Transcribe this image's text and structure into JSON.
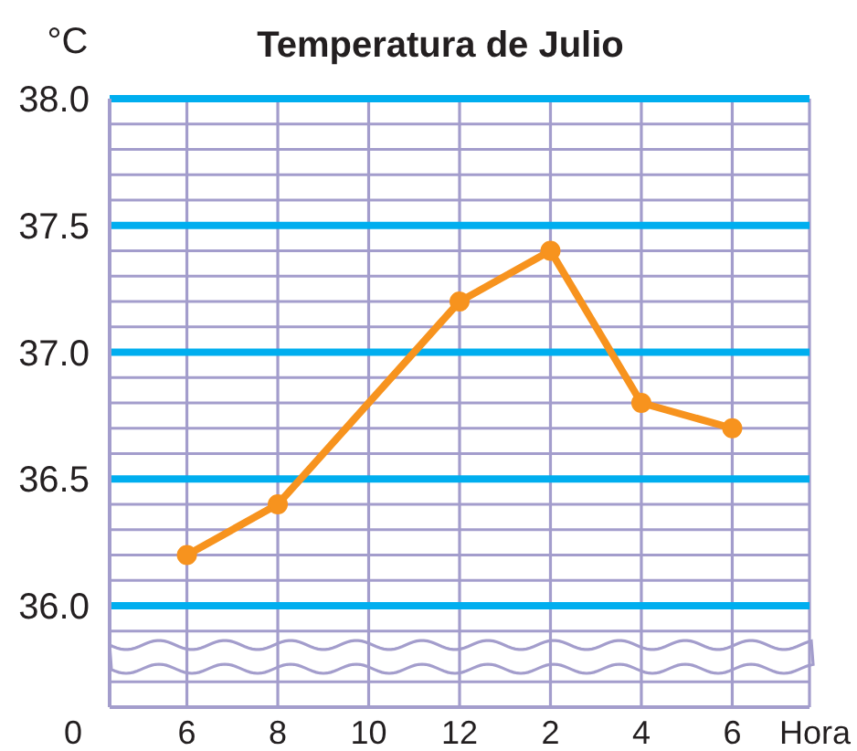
{
  "chart_data": {
    "type": "line",
    "title": "Temperatura de Julio",
    "xlabel": "Hora",
    "ylabel": "°C",
    "categories": [
      "6",
      "8",
      "10",
      "12",
      "2",
      "4",
      "6"
    ],
    "values": [
      36.2,
      36.4,
      null,
      37.2,
      37.4,
      36.8,
      36.7
    ],
    "color": "#f7931e",
    "ylim": [
      35.6,
      38.0
    ],
    "yticks": [
      {
        "value": 35.7,
        "label": null
      },
      {
        "value": 35.9,
        "label": null
      },
      {
        "value": 36,
        "label": "36.0"
      },
      {
        "value": 36.1,
        "label": null
      },
      {
        "value": 36.2,
        "label": null
      },
      {
        "value": 36.3,
        "label": null
      },
      {
        "value": 36.4,
        "label": null
      },
      {
        "value": 36.5,
        "label": "36.5"
      },
      {
        "value": 36.6,
        "label": null
      },
      {
        "value": 36.7,
        "label": null
      },
      {
        "value": 36.8,
        "label": null
      },
      {
        "value": 36.9,
        "label": null
      },
      {
        "value": 37,
        "label": "37.0"
      },
      {
        "value": 37.1,
        "label": null
      },
      {
        "value": 37.2,
        "label": null
      },
      {
        "value": 37.3,
        "label": null
      },
      {
        "value": 37.4,
        "label": null
      },
      {
        "value": 37.5,
        "label": "37.5"
      },
      {
        "value": 37.6,
        "label": null
      },
      {
        "value": 37.7,
        "label": null
      },
      {
        "value": 37.8,
        "label": null
      },
      {
        "value": 37.9,
        "label": null
      },
      {
        "value": 38,
        "label": "38.0"
      }
    ],
    "grid": true,
    "marker": "circle",
    "line_style": "solid",
    "annotations": [
      "0"
    ]
  }
}
